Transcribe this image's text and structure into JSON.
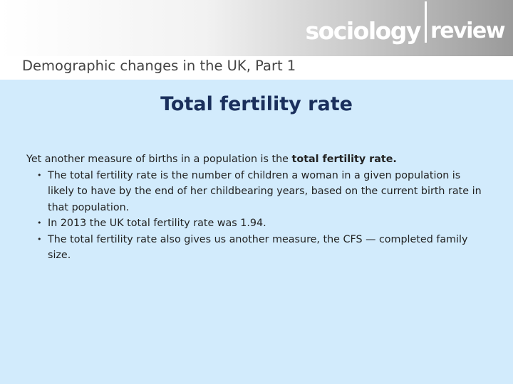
{
  "header": {
    "logo_word1": "sociology",
    "logo_word2": "review",
    "subtitle": "Demographic changes in the UK, Part 1"
  },
  "slide": {
    "title": "Total fertility rate",
    "intro_prefix": "Yet another measure of births in a population is the ",
    "intro_bold": "total fertility rate.",
    "bullets": [
      "The total fertility rate is the number of children a woman in a given population is likely to have by the end of her childbearing years, based on the current birth rate in that population.",
      "In 2013 the UK total fertility rate was 1.94.",
      "The total fertility rate also gives us another measure, the CFS — completed family size."
    ]
  },
  "colors": {
    "background": "#d2ebfc",
    "title": "#1a2f5c",
    "subtitle": "#444444"
  }
}
